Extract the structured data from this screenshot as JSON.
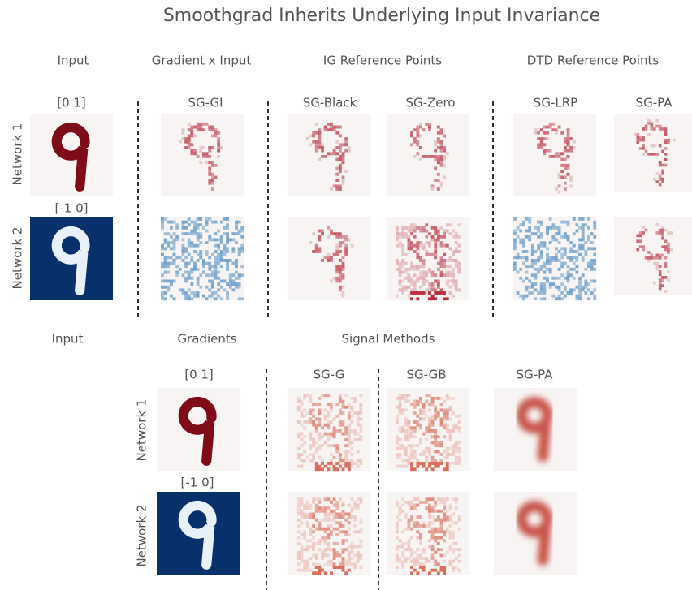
{
  "title": "Smoothgrad Inherits Underlying Input Invariance",
  "top": {
    "column_headers": [
      "Input",
      "Gradient x Input",
      "IG Reference Points",
      "DTD Reference Points"
    ],
    "input_ranges": [
      "[0 1]",
      "[-1 0]"
    ],
    "method_labels": [
      "SG-GI",
      "SG-Black",
      "SG-Zero",
      "SG-LRP",
      "SG-PA"
    ],
    "row_labels": [
      "Network 1",
      "Network 2"
    ]
  },
  "bottom": {
    "column_headers": [
      "Input",
      "Gradients",
      "Signal Methods"
    ],
    "input_ranges": [
      "[0 1]",
      "[-1 0]"
    ],
    "method_labels": [
      "SG-G",
      "SG-GB",
      "SG-PA"
    ],
    "row_labels": [
      "Network 1",
      "Network 2"
    ]
  }
}
